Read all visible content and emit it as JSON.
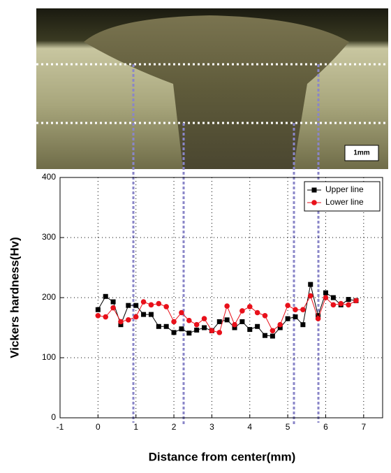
{
  "micrograph": {
    "scale_bar": "1mm"
  },
  "chart_data": {
    "type": "line",
    "xlabel": "Distance from center(mm)",
    "ylabel": "Vickers hardness(Hv)",
    "x": [
      0,
      0.2,
      0.4,
      0.6,
      0.8,
      1.0,
      1.2,
      1.4,
      1.6,
      1.8,
      2.0,
      2.2,
      2.4,
      2.6,
      2.8,
      3.0,
      3.2,
      3.4,
      3.6,
      3.8,
      4.0,
      4.2,
      4.4,
      4.6,
      4.8,
      5.0,
      5.2,
      5.4,
      5.6,
      5.8,
      6.0,
      6.2,
      6.4,
      6.6,
      6.8
    ],
    "series": [
      {
        "name": "Upper line",
        "color": "#000000",
        "marker": "square",
        "values": [
          180,
          202,
          193,
          155,
          187,
          187,
          172,
          172,
          152,
          152,
          142,
          148,
          141,
          146,
          150,
          145,
          160,
          163,
          150,
          160,
          147,
          152,
          137,
          136,
          150,
          165,
          168,
          155,
          222,
          170,
          208,
          200,
          188,
          197,
          195
        ]
      },
      {
        "name": "Lower line",
        "color": "#e8101a",
        "marker": "circle",
        "values": [
          170,
          168,
          183,
          160,
          163,
          168,
          193,
          188,
          190,
          185,
          160,
          175,
          162,
          155,
          165,
          145,
          142,
          186,
          155,
          178,
          185,
          175,
          170,
          145,
          155,
          187,
          180,
          180,
          203,
          165,
          200,
          188,
          190,
          188,
          195
        ]
      }
    ],
    "xlim": [
      -1,
      7.5
    ],
    "xticks": [
      -1,
      0,
      1,
      2,
      3,
      4,
      5,
      6,
      7
    ],
    "ylim": [
      0,
      400
    ],
    "yticks": [
      0,
      100,
      200,
      300,
      400
    ],
    "grid": true,
    "legend": "upper right"
  }
}
